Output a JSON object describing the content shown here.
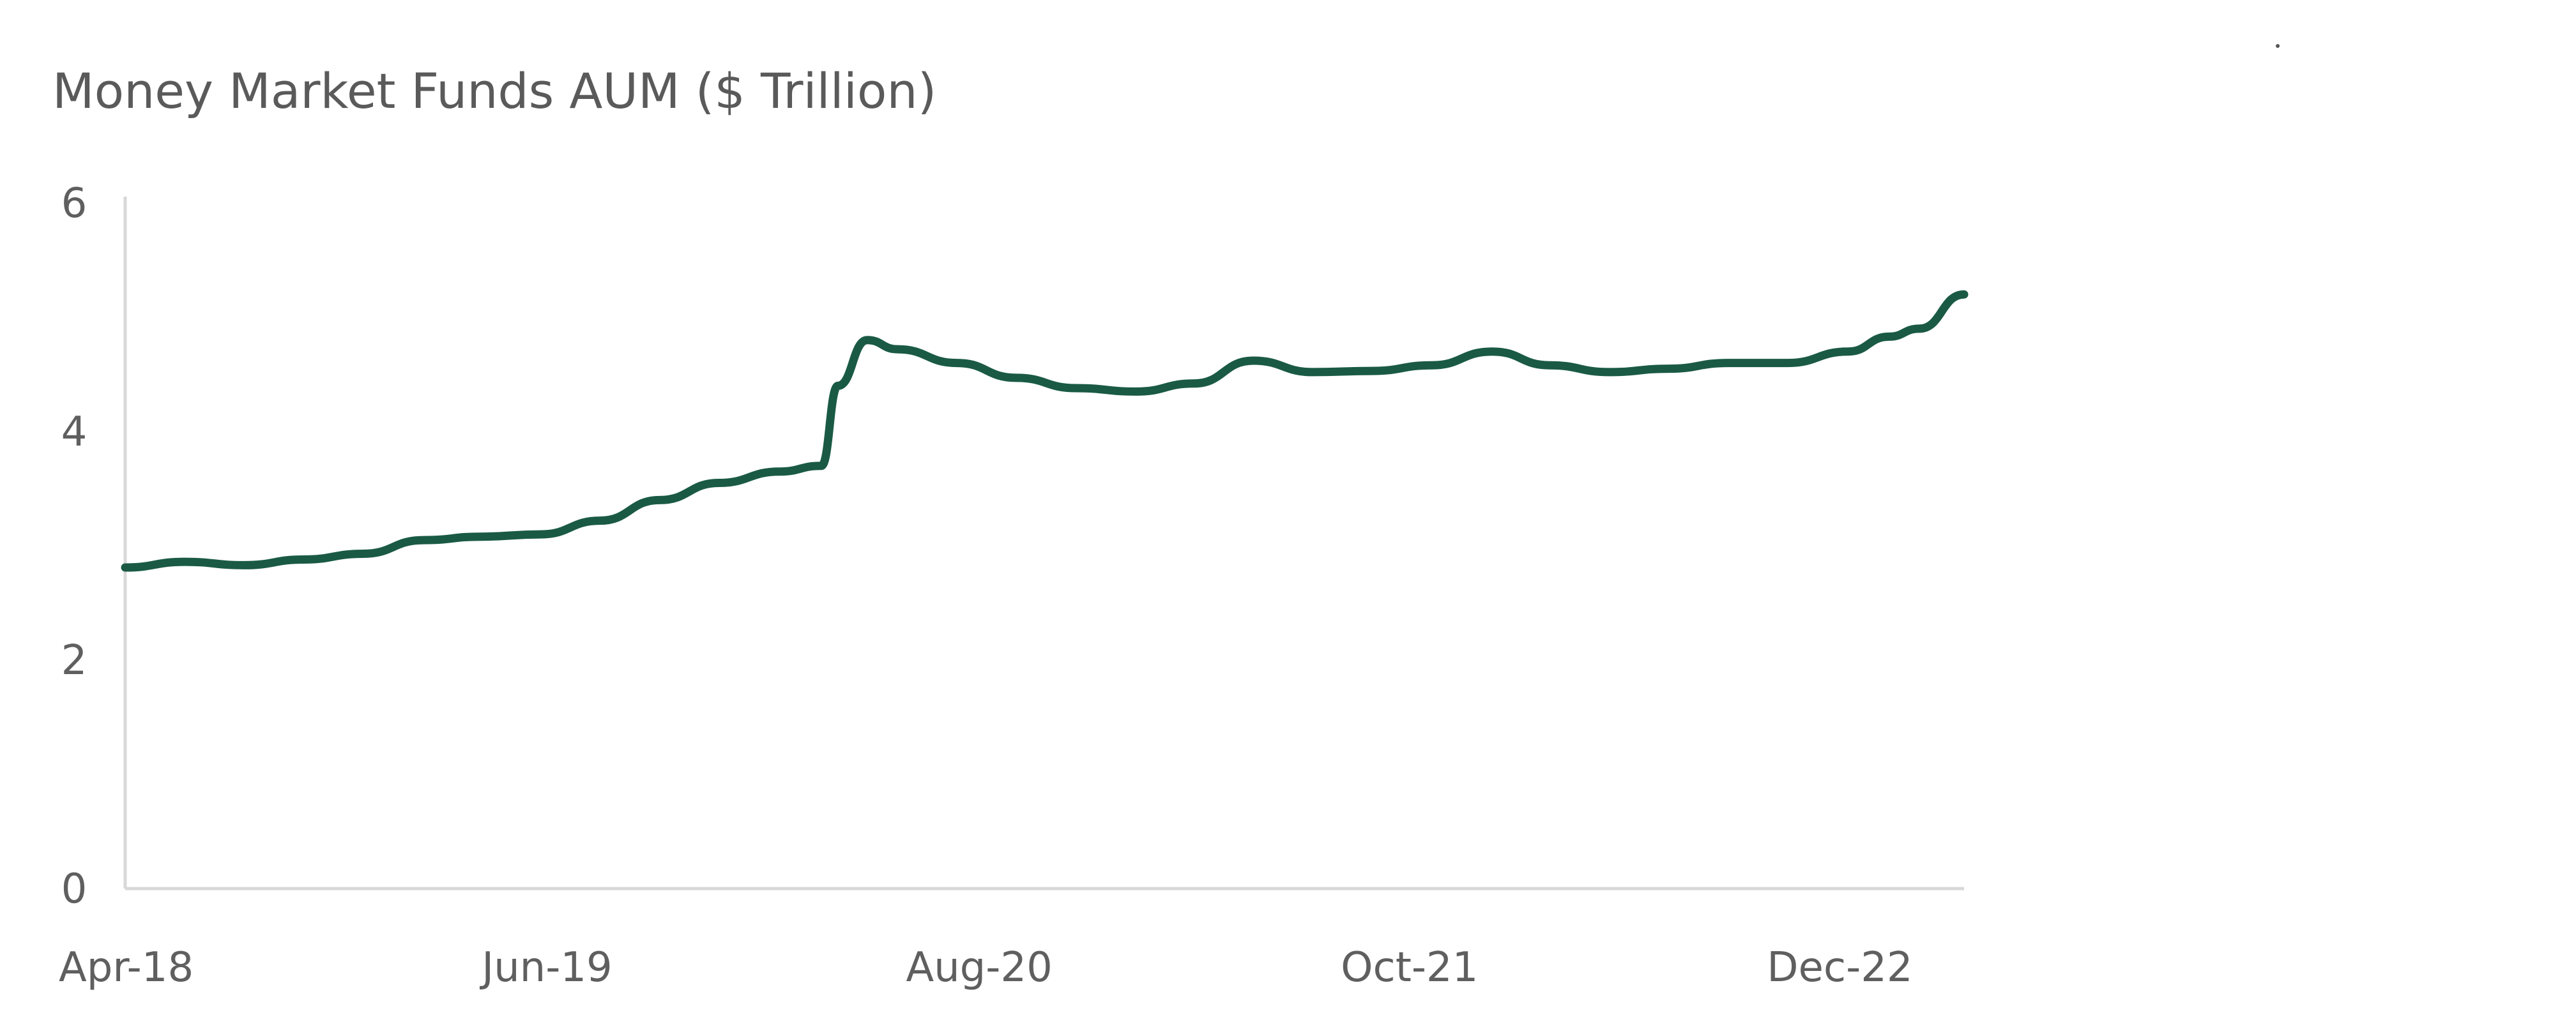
{
  "chart_data": {
    "type": "line",
    "title": "Money Market Funds AUM ($ Trillion)",
    "xlabel": "",
    "ylabel": "",
    "x_tick_labels": [
      "Apr-18",
      "Jun-19",
      "Aug-20",
      "Oct-21",
      "Dec-22"
    ],
    "y_ticks": [
      0,
      2,
      4,
      6
    ],
    "ylim": [
      0,
      6
    ],
    "xlim": [
      "2018-04-01",
      "2023-05-31"
    ],
    "grid": false,
    "legend": "none",
    "line_color": "#1a5a44",
    "axis_color": "#d8d8d8",
    "series": [
      {
        "name": "",
        "x": [
          "2018-04-01",
          "2018-06-01",
          "2018-08-01",
          "2018-10-01",
          "2018-12-01",
          "2019-02-01",
          "2019-04-01",
          "2019-06-01",
          "2019-08-01",
          "2019-10-01",
          "2019-12-01",
          "2020-02-01",
          "2020-03-15",
          "2020-04-01",
          "2020-05-01",
          "2020-06-01",
          "2020-08-01",
          "2020-10-01",
          "2020-12-01",
          "2021-02-01",
          "2021-04-01",
          "2021-06-01",
          "2021-08-01",
          "2021-10-01",
          "2021-12-01",
          "2022-02-01",
          "2022-04-01",
          "2022-06-01",
          "2022-08-01",
          "2022-10-01",
          "2022-12-01",
          "2023-02-01",
          "2023-03-15",
          "2023-04-15",
          "2023-05-31"
        ],
        "values": [
          2.81,
          2.86,
          2.83,
          2.88,
          2.93,
          3.05,
          3.08,
          3.1,
          3.22,
          3.4,
          3.55,
          3.65,
          3.7,
          4.4,
          4.8,
          4.72,
          4.6,
          4.47,
          4.38,
          4.35,
          4.42,
          4.62,
          4.52,
          4.53,
          4.58,
          4.7,
          4.58,
          4.52,
          4.55,
          4.6,
          4.6,
          4.7,
          4.83,
          4.9,
          5.2
        ]
      }
    ]
  }
}
